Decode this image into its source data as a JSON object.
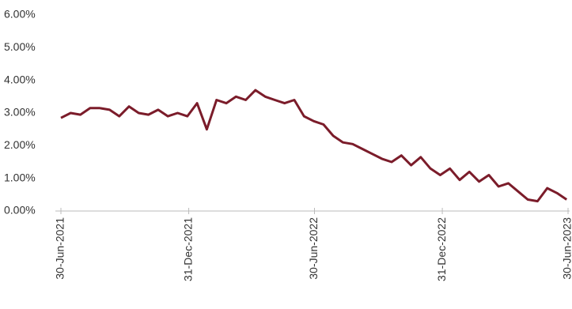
{
  "chart_data": {
    "type": "line",
    "x": [
      "2021-06-30",
      "2021-07-14",
      "2021-07-28",
      "2021-08-11",
      "2021-08-25",
      "2021-09-08",
      "2021-09-22",
      "2021-10-06",
      "2021-10-20",
      "2021-11-03",
      "2021-11-17",
      "2021-12-01",
      "2021-12-15",
      "2021-12-29",
      "2022-01-12",
      "2022-01-26",
      "2022-02-09",
      "2022-02-23",
      "2022-03-09",
      "2022-03-23",
      "2022-04-06",
      "2022-04-20",
      "2022-05-04",
      "2022-05-18",
      "2022-06-01",
      "2022-06-15",
      "2022-06-29",
      "2022-07-13",
      "2022-07-27",
      "2022-08-10",
      "2022-08-24",
      "2022-09-07",
      "2022-09-21",
      "2022-10-05",
      "2022-10-19",
      "2022-11-02",
      "2022-11-16",
      "2022-11-30",
      "2022-12-14",
      "2022-12-28",
      "2023-01-11",
      "2023-01-25",
      "2023-02-08",
      "2023-02-22",
      "2023-03-08",
      "2023-03-22",
      "2023-04-05",
      "2023-04-19",
      "2023-05-03",
      "2023-05-17",
      "2023-05-31",
      "2023-06-14",
      "2023-06-28"
    ],
    "series": [
      {
        "color": "#7b1c2a",
        "values": [
          2.85,
          3.0,
          2.95,
          3.15,
          3.15,
          3.1,
          2.9,
          3.2,
          3.0,
          2.95,
          3.1,
          2.9,
          3.0,
          2.9,
          3.3,
          2.5,
          3.4,
          3.3,
          3.5,
          3.4,
          3.7,
          3.5,
          3.4,
          3.3,
          3.4,
          2.9,
          2.75,
          2.65,
          2.3,
          2.1,
          2.05,
          1.9,
          1.75,
          1.6,
          1.5,
          1.7,
          1.4,
          1.65,
          1.3,
          1.1,
          1.3,
          0.95,
          1.2,
          0.9,
          1.1,
          0.75,
          0.85,
          0.6,
          0.35,
          0.3,
          0.7,
          0.55,
          0.35
        ]
      }
    ],
    "xlim": [
      "2021-06-30",
      "2023-06-30"
    ],
    "xticks": [
      {
        "value": "2021-06-30",
        "label": "30-Jun-2021"
      },
      {
        "value": "2021-12-31",
        "label": "31-Dec-2021"
      },
      {
        "value": "2022-06-30",
        "label": "30-Jun-2022"
      },
      {
        "value": "2022-12-31",
        "label": "31-Dec-2022"
      },
      {
        "value": "2023-06-30",
        "label": "30-Jun-2023"
      }
    ],
    "ylim": [
      0,
      6
    ],
    "yticks": [
      {
        "value": 0,
        "label": "0.00%"
      },
      {
        "value": 1,
        "label": "1.00%"
      },
      {
        "value": 2,
        "label": "2.00%"
      },
      {
        "value": 3,
        "label": "3.00%"
      },
      {
        "value": 4,
        "label": "4.00%"
      },
      {
        "value": 5,
        "label": "5.00%"
      },
      {
        "value": 6,
        "label": "6.00%"
      }
    ],
    "grid": false
  }
}
